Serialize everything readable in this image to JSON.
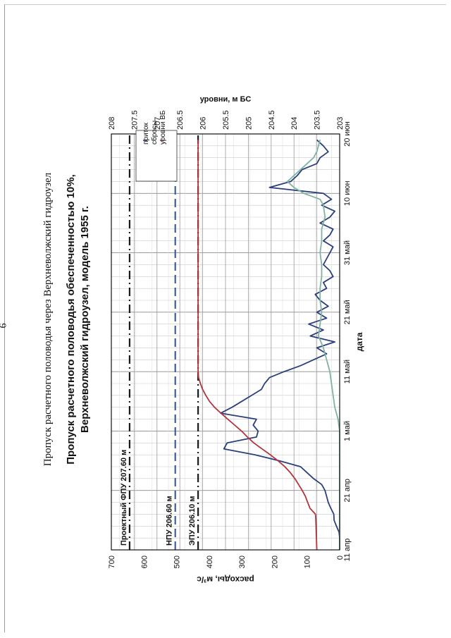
{
  "page": {
    "number": "6",
    "header": "Пропуск расчетного половодья через Верхневолжский гидроузел"
  },
  "chart_data": {
    "type": "line",
    "title": "Пропуск расчетного половодья обеспеченностью 10%,",
    "subtitle": "Верхневолжский гидроузел, модель 1955 г.",
    "xlabel": "дата",
    "ylabel": "расходы, м³/с",
    "y2label": "уровни, м БС",
    "x_ticks": [
      "11 апр",
      "21 апр",
      "1 май",
      "11 май",
      "21 май",
      "31 май",
      "10 июн",
      "20 июн"
    ],
    "x_range_days": [
      0,
      70
    ],
    "ylim": [
      0,
      700
    ],
    "y_ticks": [
      "0",
      "100",
      "200",
      "300",
      "400",
      "500",
      "600",
      "700"
    ],
    "y2lim": [
      203,
      208
    ],
    "y2_ticks": [
      "203",
      "203.5",
      "204",
      "204.5",
      "205",
      "205.5",
      "206",
      "206.5",
      "207",
      "207.5",
      "208"
    ],
    "grid": true,
    "legend_position": "top-right",
    "colors": {
      "inflow": "#2b3f7c",
      "outflow": "#7fb3a2",
      "level": "#b0353c",
      "fpu": "#1a1a1a",
      "npu": "#3a5f9e",
      "epu": "#1a1a1a"
    },
    "series": [
      {
        "name": "приток",
        "axis": "left",
        "x": [
          0,
          2,
          3,
          4,
          5,
          6,
          7,
          8,
          9,
          10,
          11,
          12,
          13,
          14,
          15,
          16,
          17,
          18,
          19,
          20,
          21,
          22,
          23,
          24,
          25,
          26,
          27,
          28,
          29,
          30,
          31,
          32,
          33,
          34,
          35,
          36,
          37,
          38,
          39,
          40,
          41,
          42,
          43,
          44,
          45,
          46,
          47,
          48,
          49,
          50,
          51,
          52,
          53,
          54,
          55,
          56,
          57,
          58,
          59,
          60,
          61,
          62,
          63,
          64,
          65,
          66,
          67,
          68,
          69
        ],
        "values": [
          0,
          0,
          2,
          10,
          17,
          18,
          27,
          35,
          40,
          45,
          55,
          80,
          100,
          120,
          185,
          260,
          355,
          345,
          255,
          250,
          265,
          255,
          365,
          330,
          300,
          270,
          240,
          230,
          215,
          170,
          120,
          80,
          40,
          70,
          15,
          90,
          50,
          95,
          40,
          70,
          35,
          60,
          75,
          40,
          50,
          20,
          30,
          50,
          40,
          30,
          20,
          50,
          30,
          20,
          60,
          30,
          15,
          55,
          25,
          50,
          215,
          150,
          130,
          115,
          70,
          60,
          35,
          50,
          70
        ]
      },
      {
        "name": "сбросы",
        "axis": "left",
        "x": [
          0,
          2,
          4,
          6,
          8,
          10,
          12,
          14,
          16,
          18,
          20,
          22,
          24,
          26,
          28,
          30,
          32,
          34,
          36,
          38,
          40,
          42,
          44,
          46,
          48,
          50,
          52,
          54,
          56,
          58,
          59,
          60,
          61,
          62,
          64,
          66,
          67,
          68,
          69
        ],
        "values": [
          0,
          0,
          0,
          0,
          0,
          0,
          0,
          0,
          0,
          0,
          0,
          5,
          15,
          20,
          25,
          30,
          40,
          50,
          65,
          60,
          55,
          60,
          60,
          55,
          55,
          60,
          55,
          55,
          45,
          50,
          60,
          110,
          140,
          160,
          120,
          80,
          70,
          65,
          60
        ]
      },
      {
        "name": "уровни ВБ",
        "axis": "right",
        "x": [
          0,
          5,
          6,
          7,
          8,
          9,
          10,
          11,
          12,
          13,
          14,
          15,
          16,
          17,
          18,
          19,
          20,
          21,
          22,
          23,
          24,
          25,
          26,
          27,
          28,
          29,
          30,
          69
        ],
        "values": [
          203.5,
          203.52,
          203.53,
          203.65,
          203.7,
          203.75,
          203.82,
          203.9,
          203.98,
          204.08,
          204.2,
          204.35,
          204.52,
          204.7,
          204.88,
          205.02,
          205.15,
          205.3,
          205.45,
          205.6,
          205.74,
          205.85,
          205.93,
          206.0,
          206.05,
          206.09,
          206.1,
          206.1
        ]
      }
    ],
    "reference_lines": [
      {
        "name": "Проектный ФПУ 207.60 м",
        "level": 207.6,
        "style": "dash-dot"
      },
      {
        "name": "НПУ 206.60 м",
        "level": 206.6,
        "style": "dashed"
      },
      {
        "name": "ЭПУ 206.10 м",
        "level": 206.1,
        "style": "dash-dot"
      }
    ]
  }
}
